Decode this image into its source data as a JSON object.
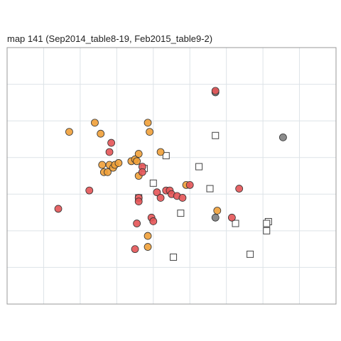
{
  "title": "map 141 (Sep2014_table8-19, Feb2015_table9-2)",
  "colors": {
    "orange": "#f0a038",
    "red": "#e45456",
    "grey": "#808080",
    "square_fill": "#ffffff",
    "square_stroke": "#444444",
    "grid": "#dde3e7",
    "border": "#999999"
  },
  "chart_data": {
    "type": "scatter",
    "title": "map 141 (Sep2014_table8-19, Feb2015_table9-2)",
    "xlabel": "",
    "ylabel": "",
    "xlim": [
      0,
      9
    ],
    "ylim": [
      0,
      7
    ],
    "grid": true,
    "legend": "none",
    "series": [
      {
        "marker": "circle",
        "color": "orange",
        "points": [
          [
            1.7,
            4.7
          ],
          [
            2.4,
            4.95
          ],
          [
            2.56,
            4.65
          ],
          [
            2.6,
            3.8
          ],
          [
            2.65,
            3.6
          ],
          [
            2.75,
            3.6
          ],
          [
            2.8,
            3.8
          ],
          [
            2.9,
            3.72
          ],
          [
            2.95,
            3.8
          ],
          [
            3.05,
            3.85
          ],
          [
            3.4,
            3.9
          ],
          [
            3.5,
            3.95
          ],
          [
            3.55,
            3.9
          ],
          [
            3.6,
            4.1
          ],
          [
            3.6,
            3.5
          ],
          [
            3.85,
            4.95
          ],
          [
            3.9,
            4.7
          ],
          [
            4.2,
            4.15
          ],
          [
            4.9,
            3.25
          ],
          [
            5.75,
            2.55
          ],
          [
            3.85,
            1.86
          ],
          [
            3.85,
            1.56
          ]
        ]
      },
      {
        "marker": "circle",
        "color": "red",
        "points": [
          [
            5.7,
            5.82
          ],
          [
            2.85,
            4.4
          ],
          [
            2.8,
            4.15
          ],
          [
            3.7,
            3.75
          ],
          [
            3.7,
            3.6
          ],
          [
            2.25,
            3.1
          ],
          [
            1.4,
            2.6
          ],
          [
            3.6,
            2.9
          ],
          [
            3.6,
            2.8
          ],
          [
            4.1,
            3.05
          ],
          [
            4.2,
            2.9
          ],
          [
            4.35,
            3.1
          ],
          [
            4.45,
            3.1
          ],
          [
            4.5,
            3.0
          ],
          [
            4.65,
            2.95
          ],
          [
            4.8,
            2.9
          ],
          [
            5.0,
            3.25
          ],
          [
            6.35,
            3.15
          ],
          [
            3.95,
            2.36
          ],
          [
            4.0,
            2.26
          ],
          [
            3.55,
            2.2
          ],
          [
            6.15,
            2.36
          ],
          [
            3.5,
            1.5
          ]
        ]
      },
      {
        "marker": "circle",
        "color": "grey",
        "points": [
          [
            5.7,
            5.78
          ],
          [
            7.55,
            4.55
          ],
          [
            5.7,
            2.36
          ]
        ]
      },
      {
        "marker": "square",
        "color": "square",
        "points": [
          [
            5.7,
            4.6
          ],
          [
            4.35,
            4.05
          ],
          [
            5.25,
            3.75
          ],
          [
            3.75,
            3.7
          ],
          [
            4.0,
            3.3
          ],
          [
            5.55,
            3.15
          ],
          [
            3.6,
            2.9
          ],
          [
            4.75,
            2.48
          ],
          [
            6.25,
            2.2
          ],
          [
            7.15,
            2.25
          ],
          [
            7.1,
            2.0
          ],
          [
            7.1,
            2.2
          ],
          [
            6.65,
            1.36
          ],
          [
            4.55,
            1.28
          ]
        ]
      }
    ]
  }
}
